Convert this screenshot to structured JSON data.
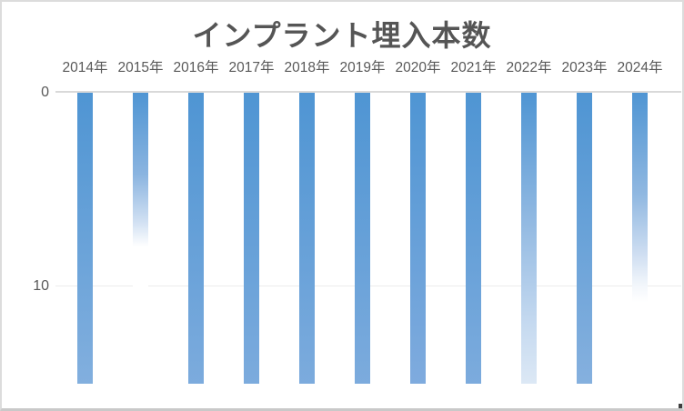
{
  "chart_data": {
    "type": "bar",
    "title": "インプラント埋入本数",
    "categories": [
      "2014年",
      "2015年",
      "2016年",
      "2017年",
      "2018年",
      "2019年",
      "2020年",
      "2021年",
      "2022年",
      "2023年",
      "2024年"
    ],
    "values": [
      15,
      8,
      15,
      15,
      15,
      15,
      15,
      15,
      15,
      15,
      11
    ],
    "xlabel": "",
    "ylabel": "",
    "legend": "none",
    "grid": "horizontal-faint",
    "orientation": "columns-hanging-downward",
    "category_axis_position": "top",
    "value_axis": {
      "direction": "downward",
      "ticks": [
        "0",
        "10"
      ],
      "tick_values": [
        0,
        10
      ],
      "range": [
        0,
        16.4
      ]
    },
    "colors": {
      "bar_top": "#4f95d3",
      "bar_bottom": "#7cabdd",
      "axis_line": "#d9d9d9",
      "gridline": "#ededed",
      "label_text": "#595959",
      "title_text": "#555555"
    },
    "bars": [
      {
        "category": "2014年",
        "value": 15,
        "fill": "gradient-slight",
        "gradient": [
          "#4f95d3 0%",
          "#82afde 100%"
        ]
      },
      {
        "category": "2015年",
        "value": 8,
        "fill": "fade-to-white-mid",
        "gradient": [
          "#4f95d3 0%",
          "#8ab4e0 28%",
          "#cfdff2 44%",
          "#ffffff 53%",
          "#ffffff 100%"
        ]
      },
      {
        "category": "2016年",
        "value": 15,
        "fill": "solid",
        "gradient": [
          "#4f95d3 0%",
          "#7cabdd 100%"
        ]
      },
      {
        "category": "2017年",
        "value": 15,
        "fill": "solid",
        "gradient": [
          "#4f95d3 0%",
          "#7cabdd 100%"
        ]
      },
      {
        "category": "2018年",
        "value": 15,
        "fill": "solid",
        "gradient": [
          "#4f95d3 0%",
          "#7cabdd 100%"
        ]
      },
      {
        "category": "2019年",
        "value": 15,
        "fill": "solid",
        "gradient": [
          "#4f95d3 0%",
          "#7cabdd 100%"
        ]
      },
      {
        "category": "2020年",
        "value": 15,
        "fill": "solid",
        "gradient": [
          "#4f95d3 0%",
          "#7fabde 100%"
        ]
      },
      {
        "category": "2021年",
        "value": 15,
        "fill": "solid",
        "gradient": [
          "#4f95d3 0%",
          "#7cabdd 100%"
        ]
      },
      {
        "category": "2022年",
        "value": 15,
        "fill": "fade-to-light",
        "gradient": [
          "#4f95d3 0%",
          "#93bae2 45%",
          "#c6daf0 80%",
          "#dce8f5 100%"
        ]
      },
      {
        "category": "2023年",
        "value": 15,
        "fill": "gradient-slight",
        "gradient": [
          "#4f95d3 0%",
          "#85b0de 100%"
        ]
      },
      {
        "category": "2024年",
        "value": 11,
        "fill": "fade-to-white-upper",
        "gradient": [
          "#4f95d3 0%",
          "#90b8e1 35%",
          "#cdddf1 55%",
          "#f2f6fb 66%",
          "#ffffff 72%",
          "#ffffff 100%"
        ]
      }
    ]
  }
}
